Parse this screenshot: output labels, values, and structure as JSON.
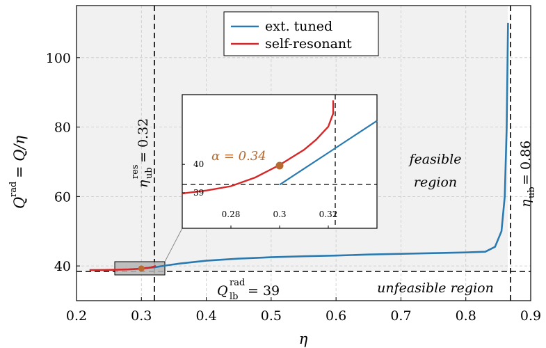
{
  "chart_data": {
    "type": "line",
    "xlabel": "η",
    "ylabel": "Qrad = Q/η",
    "xlim": [
      0.2,
      0.9
    ],
    "ylim": [
      30,
      115
    ],
    "xticks": [
      "0.2",
      "0.3",
      "0.4",
      "0.5",
      "0.6",
      "0.7",
      "0.8",
      "0.9"
    ],
    "yticks": [
      "40",
      "60",
      "80",
      "100"
    ],
    "grid": true,
    "legend_position": "top-center",
    "series": [
      {
        "name": "ext. tuned",
        "color": "#2a7ab0",
        "x": [
          0.3,
          0.32,
          0.34,
          0.36,
          0.38,
          0.4,
          0.45,
          0.5,
          0.55,
          0.6,
          0.65,
          0.7,
          0.75,
          0.8,
          0.83,
          0.845,
          0.855,
          0.86,
          0.863,
          0.865
        ],
        "y": [
          39.3,
          39.6,
          40.2,
          40.7,
          41.1,
          41.5,
          42.1,
          42.5,
          42.8,
          43.0,
          43.3,
          43.5,
          43.7,
          43.9,
          44.1,
          45.5,
          50.0,
          60.0,
          80.0,
          110.0
        ]
      },
      {
        "name": "self-resonant",
        "color": "#d62728",
        "x": [
          0.22,
          0.24,
          0.26,
          0.28,
          0.29,
          0.3,
          0.31,
          0.315,
          0.32,
          0.322
        ],
        "y": [
          38.8,
          38.85,
          38.9,
          39.0,
          39.1,
          39.25,
          39.45,
          39.6,
          39.85,
          40.1
        ]
      }
    ],
    "reference_lines": {
      "vertical": [
        {
          "x": 0.32,
          "label": "η_ub^res = 0.32"
        },
        {
          "x": 0.86,
          "label": "η_ub = 0.86"
        }
      ],
      "horizontal": [
        {
          "y": 39,
          "label": "Q_lb^rad = 39"
        }
      ]
    },
    "highlight_point": {
      "x": 0.3,
      "y": 39.25,
      "color": "#b86b30"
    },
    "regions": {
      "feasible": "feasible region",
      "unfeasible": "unfeasible region"
    },
    "inset": {
      "xlim": [
        0.26,
        0.34
      ],
      "ylim": [
        37.8,
        42.4
      ],
      "xticks": [
        "0.28",
        "0.3",
        "0.32"
      ],
      "yticks": [
        "40",
        "39"
      ],
      "annotation": "α = 0.34"
    }
  },
  "labels": {
    "x_axis_title": "η",
    "y_axis_title_main": "Q",
    "y_axis_title_sup": "rad",
    "y_axis_title_rest": " = Q/η",
    "legend_ext": "ext. tuned",
    "legend_self": "self-resonant",
    "eta_res_main": "η",
    "eta_res_sup": "res",
    "eta_res_sub": "ub",
    "eta_res_value": " = 0.32",
    "eta_ub_main": "η",
    "eta_ub_sub": "ub",
    "eta_ub_value": " = 0.86",
    "qlb_main": "Q",
    "qlb_sup": "rad",
    "qlb_sub": "lb",
    "qlb_value": " = 39",
    "feasible_line1": "feasible",
    "feasible_line2": "region",
    "unfeasible": "unfeasible region",
    "alpha": "α = 0.34"
  }
}
